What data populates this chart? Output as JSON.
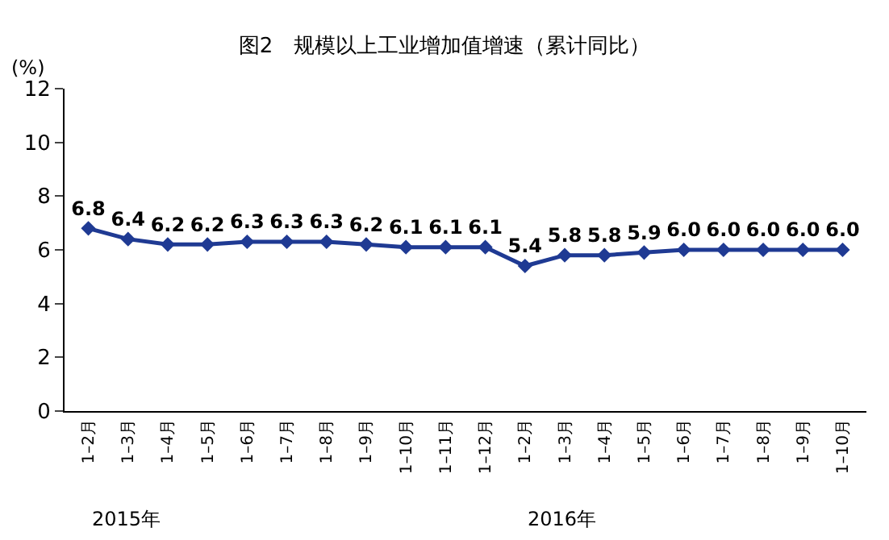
{
  "chart_data": {
    "type": "line",
    "title": "图2　规模以上工业增加值增速（累计同比）",
    "ylabel": "(%)",
    "categories": [
      "1–2月",
      "1–3月",
      "1–4月",
      "1–5月",
      "1–6月",
      "1–7月",
      "1–8月",
      "1–9月",
      "1–10月",
      "1–11月",
      "1–12月",
      "1–2月",
      "1–3月",
      "1–4月",
      "1–5月",
      "1–6月",
      "1–7月",
      "1–8月",
      "1–9月",
      "1–10月"
    ],
    "series": [
      {
        "color": "#1f3a93",
        "values": [
          6.8,
          6.4,
          6.2,
          6.2,
          6.3,
          6.3,
          6.3,
          6.2,
          6.1,
          6.1,
          6.1,
          5.4,
          5.8,
          5.8,
          5.9,
          6.0,
          6.0,
          6.0,
          6.0,
          6.0
        ],
        "value_labels": [
          "6.8",
          "6.4",
          "6.2",
          "6.2",
          "6.3",
          "6.3",
          "6.3",
          "6.2",
          "6.1",
          "6.1",
          "6.1",
          "5.4",
          "5.8",
          "5.8",
          "5.9",
          "6.0",
          "6.0",
          "6.0",
          "6.0",
          "6.0"
        ]
      }
    ],
    "ylim": [
      0,
      12
    ],
    "yticks": [
      0,
      2,
      4,
      6,
      8,
      10,
      12
    ],
    "marker": "diamond",
    "legend": false,
    "annotations": [
      "2015年",
      "2016年"
    ]
  }
}
